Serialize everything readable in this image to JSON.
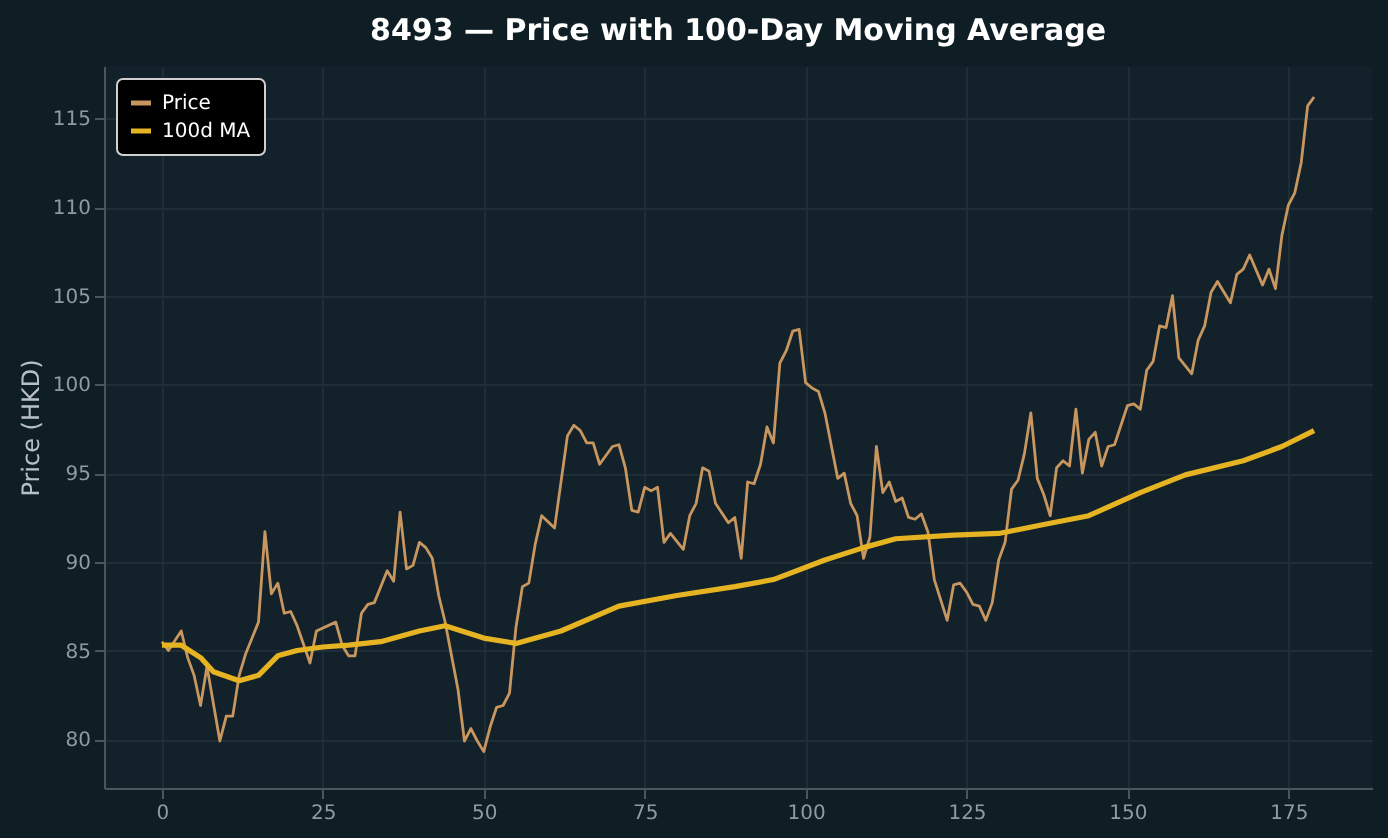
{
  "chart_data": {
    "type": "line",
    "title": "8493 — Price with 100-Day Moving Average",
    "ylabel": "Price (HKD)",
    "xlim": [
      -9,
      188
    ],
    "ylim": [
      77.25,
      117.95
    ],
    "xticks": [
      0,
      25,
      50,
      75,
      100,
      125,
      150,
      175
    ],
    "yticks": [
      80,
      85,
      90,
      95,
      100,
      105,
      110,
      115
    ],
    "grid": true,
    "legend": "top left",
    "marker": "none",
    "line_style": "solid",
    "series": [
      {
        "name": "Price",
        "color": "#c8965f",
        "x": [
          0,
          1,
          3,
          4,
          5,
          6,
          7,
          8,
          9,
          10,
          11,
          12,
          13,
          15,
          16,
          17,
          18,
          19,
          20,
          21,
          23,
          24,
          27,
          28,
          29,
          30,
          31,
          32,
          33,
          35,
          36,
          37,
          38,
          39,
          40,
          41,
          42,
          43,
          44,
          46,
          47,
          48,
          49,
          50,
          51,
          52,
          53,
          54,
          55,
          56,
          57,
          58,
          59,
          61,
          63,
          64,
          65,
          66,
          67,
          68,
          70,
          71,
          72,
          73,
          74,
          75,
          76,
          77,
          78,
          79,
          81,
          82,
          83,
          84,
          85,
          86,
          88,
          89,
          90,
          91,
          92,
          93,
          94,
          95,
          96,
          97,
          98,
          99,
          100,
          101,
          102,
          103,
          105,
          106,
          107,
          108,
          109,
          110,
          111,
          112,
          113,
          114,
          115,
          116,
          117,
          118,
          119,
          120,
          122,
          123,
          124,
          125,
          126,
          127,
          128,
          129,
          130,
          131,
          132,
          133,
          134,
          135,
          136,
          137,
          138,
          139,
          140,
          141,
          142,
          143,
          144,
          145,
          146,
          147,
          148,
          150,
          151,
          152,
          153,
          154,
          155,
          156,
          157,
          158,
          160,
          161,
          162,
          163,
          164,
          165,
          166,
          167,
          168,
          169,
          171,
          172,
          173,
          174,
          175,
          176,
          177,
          178,
          179
        ],
        "values": [
          85.5,
          85.0,
          86.1,
          84.6,
          83.6,
          81.9,
          84.1,
          82.0,
          79.9,
          81.3,
          81.3,
          83.6,
          84.8,
          86.6,
          91.7,
          88.2,
          88.8,
          87.1,
          87.2,
          86.4,
          84.3,
          86.1,
          86.6,
          85.3,
          84.7,
          84.7,
          87.1,
          87.6,
          87.7,
          89.5,
          88.9,
          92.8,
          89.6,
          89.8,
          91.1,
          90.8,
          90.2,
          88.1,
          86.6,
          82.8,
          79.9,
          80.6,
          79.9,
          79.3,
          80.7,
          81.8,
          81.9,
          82.6,
          86.3,
          88.6,
          88.8,
          91.0,
          92.6,
          91.9,
          97.1,
          97.7,
          97.4,
          96.7,
          96.7,
          95.5,
          96.5,
          96.6,
          95.3,
          92.9,
          92.8,
          94.2,
          94.0,
          94.2,
          91.1,
          91.6,
          90.7,
          92.6,
          93.3,
          95.3,
          95.1,
          93.3,
          92.2,
          92.5,
          90.2,
          94.5,
          94.4,
          95.5,
          97.6,
          96.7,
          101.2,
          101.9,
          103.0,
          103.1,
          100.1,
          99.8,
          99.6,
          98.4,
          94.7,
          95.0,
          93.3,
          92.6,
          90.2,
          91.4,
          96.5,
          93.9,
          94.5,
          93.4,
          93.6,
          92.5,
          92.4,
          92.7,
          91.7,
          89.0,
          86.7,
          88.7,
          88.8,
          88.3,
          87.6,
          87.5,
          86.7,
          87.7,
          90.1,
          91.1,
          94.1,
          94.6,
          96.1,
          98.4,
          94.7,
          93.8,
          92.6,
          95.3,
          95.7,
          95.4,
          98.6,
          95.0,
          96.9,
          97.3,
          95.4,
          96.5,
          96.6,
          98.8,
          98.9,
          98.6,
          100.8,
          101.3,
          103.3,
          103.2,
          105.0,
          101.5,
          100.6,
          102.5,
          103.3,
          105.2,
          105.8,
          105.2,
          104.6,
          106.2,
          106.5,
          107.3,
          105.6,
          106.5,
          105.4,
          108.4,
          110.1,
          110.8,
          112.5,
          115.7,
          116.2
        ]
      },
      {
        "name": "100d MA",
        "color": "#e6b422",
        "x": [
          0,
          3,
          6,
          8,
          12,
          15,
          18,
          21,
          25,
          29,
          34,
          40,
          44,
          50,
          55,
          62,
          71,
          80,
          89,
          95,
          103,
          109,
          114,
          123,
          130,
          137,
          144,
          152,
          159,
          168,
          174,
          179
        ],
        "values": [
          85.3,
          85.3,
          84.6,
          83.8,
          83.3,
          83.6,
          84.7,
          85.0,
          85.2,
          85.3,
          85.5,
          86.1,
          86.4,
          85.7,
          85.4,
          86.1,
          87.5,
          88.1,
          88.6,
          89.0,
          90.1,
          90.8,
          91.3,
          91.5,
          91.6,
          92.1,
          92.6,
          93.9,
          94.9,
          95.7,
          96.5,
          97.4
        ]
      }
    ]
  }
}
